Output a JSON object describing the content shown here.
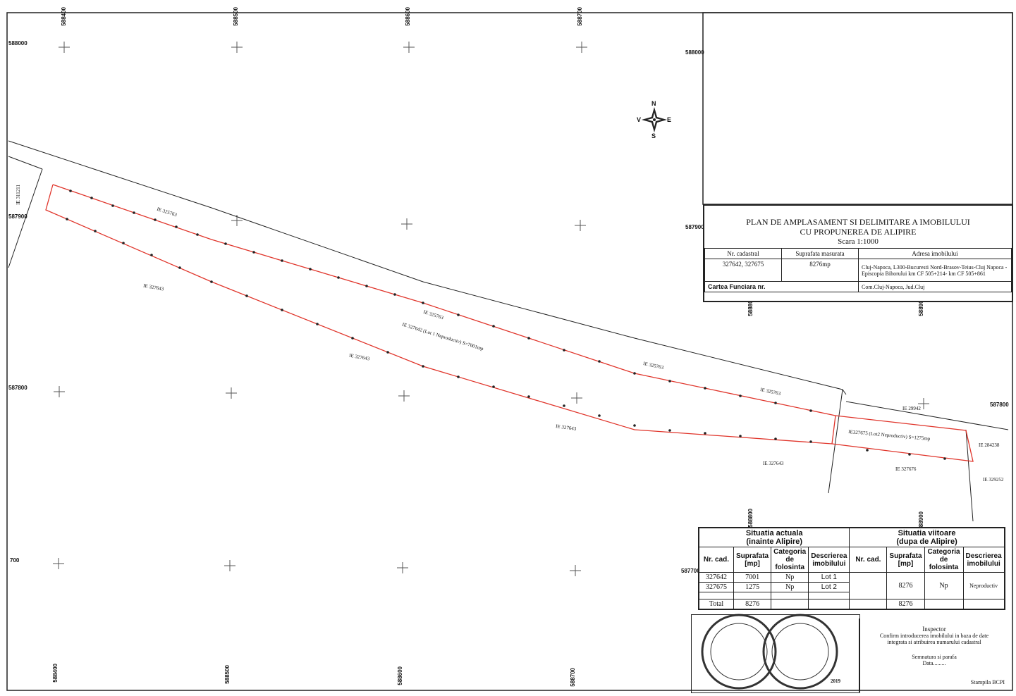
{
  "header": {
    "title_line1": "PLAN DE AMPLASAMENT SI DELIMITARE A IMOBILULUI",
    "title_line2": "CU PROPUNEREA DE ALIPIRE",
    "scale": "Scara 1:1000"
  },
  "cadastral_table": {
    "col_nr": "Nr. cadastral",
    "col_area": "Suprafata masurata",
    "col_address": "Adresa imobilului",
    "nr_value": "327642, 327675",
    "area_value": "8276mp",
    "address_value": "Cluj-Napoca, L300-Bucuresti Nord-Brasov-Teius-Cluj Napoca -Episcopia Bihorului km CF 505+214- km CF 505+861",
    "cf_label": "Cartea Funciara nr.",
    "locality": "Com.Cluj-Napoca, Jud.Cluj"
  },
  "compass": {
    "n": "N",
    "s": "S",
    "e": "E",
    "w": "V"
  },
  "grid": {
    "top_labels": [
      "588400",
      "588500",
      "588600",
      "588700"
    ],
    "bottom_labels": [
      "588400",
      "588500",
      "588600",
      "588700"
    ],
    "mid_labels": [
      "588800",
      "588900"
    ],
    "left_labels": [
      "588000",
      "587900",
      "587800",
      "700"
    ],
    "right_labels": [
      "588000",
      "587900",
      "587800",
      "587700"
    ]
  },
  "parcels": {
    "ie_325763": "IE 325763",
    "ie_327643": "IE 327643",
    "ie_327642_label": "IE 327642 (Lot 1 Neproductiv) S=7001mp",
    "ie_327675_label": "IE327675 (Lot2 Neproductiv) S=1275mp",
    "ie_311211": "IE 311211",
    "ie_29942": "IE 29942",
    "ie_284238": "IE 284238",
    "ie_329252": "IE 329252",
    "ie_327676": "IE 327676"
  },
  "situation": {
    "actual_title": "Situatia actuala",
    "actual_sub": "(inainte Alipire)",
    "future_title": "Situatia viitoare",
    "future_sub": "(dupa de Alipire)",
    "h_nr": "Nr. cad.",
    "h_area": "Suprafata [mp]",
    "h_cat": "Categoria de folosinta",
    "h_desc": "Descrierea imobilului",
    "h_cat_future": "Categoria de folosinta",
    "rows": [
      {
        "nr": "327642",
        "area": "7001",
        "cat": "Np",
        "desc": "Lot 1"
      },
      {
        "nr": "327675",
        "area": "1275",
        "cat": "Np",
        "desc": "Lot 2"
      }
    ],
    "total_label": "Total",
    "total_area": "8276",
    "future_area": "8276",
    "future_cat": "Np",
    "future_desc": "Neproductiv",
    "future_total": "8276"
  },
  "inspector": {
    "title": "Inspector",
    "line1": "Confirm introducerea imobilului in baza de date",
    "line2": "integrata si atribuirea numarului cadastral",
    "sign": "Semnatura si parafa",
    "date": "Data.........",
    "stamp": "Stampila BCPI"
  },
  "stamps": {
    "year": "2019"
  }
}
